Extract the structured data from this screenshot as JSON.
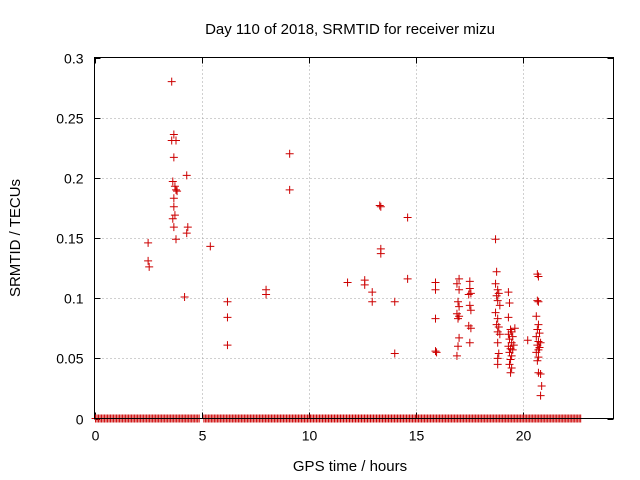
{
  "chart_data": {
    "type": "scatter",
    "title": "Day 110 of 2018, SRMTID for receiver mizu",
    "xlabel": "GPS time / hours",
    "ylabel": "SRMTID / TECUs",
    "xlim": [
      0,
      24.2
    ],
    "ylim": [
      0,
      0.3
    ],
    "xticks": [
      0,
      5,
      10,
      15,
      20
    ],
    "xtick_labels": [
      "0",
      "5",
      "10",
      "15",
      "20"
    ],
    "yticks": [
      0,
      0.05,
      0.1,
      0.15,
      0.2,
      0.25,
      0.3
    ],
    "ytick_labels": [
      "0",
      "0.05",
      "0.1",
      "0.15",
      "0.2",
      "0.25",
      "0.3"
    ],
    "grid": true,
    "marker": "+",
    "color": "#cc0000",
    "baseline_zero_x_ranges": [
      [
        0.05,
        4.9
      ],
      [
        5.1,
        22.7
      ]
    ],
    "baseline_zero_step": 0.07,
    "series": [
      {
        "name": "SRMTID",
        "points": [
          [
            2.5,
            0.146
          ],
          [
            2.5,
            0.131
          ],
          [
            2.55,
            0.126
          ],
          [
            3.6,
            0.28
          ],
          [
            3.6,
            0.231
          ],
          [
            3.7,
            0.236
          ],
          [
            3.8,
            0.231
          ],
          [
            3.7,
            0.217
          ],
          [
            3.75,
            0.193
          ],
          [
            3.8,
            0.19
          ],
          [
            3.85,
            0.189
          ],
          [
            3.65,
            0.197
          ],
          [
            3.7,
            0.183
          ],
          [
            3.7,
            0.176
          ],
          [
            3.75,
            0.169
          ],
          [
            3.65,
            0.166
          ],
          [
            3.7,
            0.159
          ],
          [
            3.8,
            0.149
          ],
          [
            4.3,
            0.202
          ],
          [
            4.35,
            0.159
          ],
          [
            4.3,
            0.154
          ],
          [
            4.2,
            0.101
          ],
          [
            5.4,
            0.143
          ],
          [
            6.2,
            0.097
          ],
          [
            6.2,
            0.084
          ],
          [
            6.2,
            0.061
          ],
          [
            8.0,
            0.107
          ],
          [
            8.0,
            0.103
          ],
          [
            9.1,
            0.22
          ],
          [
            9.1,
            0.19
          ],
          [
            11.8,
            0.113
          ],
          [
            12.6,
            0.115
          ],
          [
            12.6,
            0.111
          ],
          [
            12.95,
            0.105
          ],
          [
            12.95,
            0.097
          ],
          [
            13.3,
            0.177
          ],
          [
            13.35,
            0.176
          ],
          [
            13.35,
            0.141
          ],
          [
            13.35,
            0.137
          ],
          [
            14.0,
            0.097
          ],
          [
            14.0,
            0.054
          ],
          [
            14.6,
            0.167
          ],
          [
            14.6,
            0.116
          ],
          [
            15.9,
            0.113
          ],
          [
            15.9,
            0.107
          ],
          [
            15.9,
            0.083
          ],
          [
            15.9,
            0.056
          ],
          [
            15.95,
            0.055
          ],
          [
            16.9,
            0.112
          ],
          [
            17.0,
            0.116
          ],
          [
            17.0,
            0.107
          ],
          [
            16.95,
            0.097
          ],
          [
            17.0,
            0.093
          ],
          [
            16.9,
            0.087
          ],
          [
            17.0,
            0.085
          ],
          [
            16.95,
            0.083
          ],
          [
            17.0,
            0.067
          ],
          [
            16.95,
            0.06
          ],
          [
            16.9,
            0.052
          ],
          [
            17.5,
            0.114
          ],
          [
            17.5,
            0.108
          ],
          [
            17.55,
            0.104
          ],
          [
            17.45,
            0.103
          ],
          [
            17.5,
            0.094
          ],
          [
            17.55,
            0.09
          ],
          [
            17.45,
            0.077
          ],
          [
            17.55,
            0.075
          ],
          [
            17.5,
            0.063
          ],
          [
            18.7,
            0.149
          ],
          [
            18.75,
            0.122
          ],
          [
            18.7,
            0.112
          ],
          [
            18.8,
            0.107
          ],
          [
            18.85,
            0.104
          ],
          [
            18.75,
            0.102
          ],
          [
            18.8,
            0.098
          ],
          [
            18.9,
            0.094
          ],
          [
            18.7,
            0.088
          ],
          [
            18.8,
            0.083
          ],
          [
            18.75,
            0.078
          ],
          [
            18.85,
            0.076
          ],
          [
            18.8,
            0.072
          ],
          [
            18.9,
            0.07
          ],
          [
            18.8,
            0.063
          ],
          [
            18.85,
            0.054
          ],
          [
            18.8,
            0.05
          ],
          [
            18.8,
            0.045
          ],
          [
            19.3,
            0.105
          ],
          [
            19.35,
            0.096
          ],
          [
            19.3,
            0.084
          ],
          [
            19.4,
            0.074
          ],
          [
            19.45,
            0.072
          ],
          [
            19.3,
            0.07
          ],
          [
            19.5,
            0.068
          ],
          [
            19.35,
            0.066
          ],
          [
            19.45,
            0.063
          ],
          [
            19.3,
            0.06
          ],
          [
            19.4,
            0.058
          ],
          [
            19.5,
            0.057
          ],
          [
            19.35,
            0.055
          ],
          [
            19.45,
            0.052
          ],
          [
            19.4,
            0.049
          ],
          [
            19.35,
            0.045
          ],
          [
            19.45,
            0.042
          ],
          [
            19.4,
            0.038
          ],
          [
            19.6,
            0.075
          ],
          [
            19.55,
            0.061
          ],
          [
            20.2,
            0.065
          ],
          [
            20.65,
            0.12
          ],
          [
            20.7,
            0.118
          ],
          [
            20.65,
            0.098
          ],
          [
            20.7,
            0.097
          ],
          [
            20.6,
            0.085
          ],
          [
            20.7,
            0.078
          ],
          [
            20.65,
            0.074
          ],
          [
            20.75,
            0.071
          ],
          [
            20.6,
            0.068
          ],
          [
            20.7,
            0.064
          ],
          [
            20.8,
            0.063
          ],
          [
            20.65,
            0.061
          ],
          [
            20.75,
            0.059
          ],
          [
            20.7,
            0.057
          ],
          [
            20.6,
            0.055
          ],
          [
            20.7,
            0.051
          ],
          [
            20.65,
            0.048
          ],
          [
            20.7,
            0.038
          ],
          [
            20.8,
            0.037
          ],
          [
            20.85,
            0.027
          ],
          [
            20.8,
            0.019
          ]
        ]
      }
    ]
  }
}
